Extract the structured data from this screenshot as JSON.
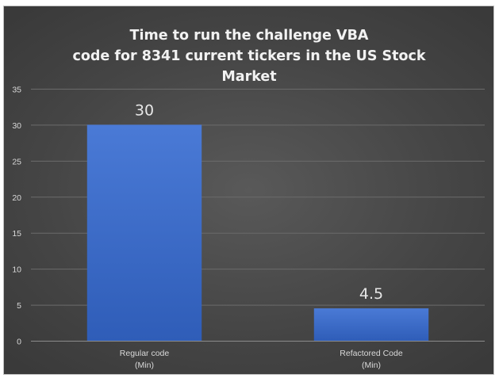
{
  "chart_data": {
    "type": "bar",
    "title_lines": [
      "Time to run the challenge VBA",
      "code for  8341 current tickers in the US Stock",
      "Market"
    ],
    "categories": [
      [
        "Regular code",
        "(Min)"
      ],
      [
        "Refactored Code",
        "(Min)"
      ]
    ],
    "values": [
      30,
      4.5
    ],
    "data_labels": [
      "30",
      "4.5"
    ],
    "ylim": [
      0,
      35
    ],
    "yticks": [
      0,
      5,
      10,
      15,
      20,
      25,
      30,
      35
    ],
    "grid": true,
    "legend": "none",
    "colors": {
      "bar_top": "#4a7ad6",
      "bar_bottom": "#2f5db8",
      "background": "#454545"
    }
  }
}
